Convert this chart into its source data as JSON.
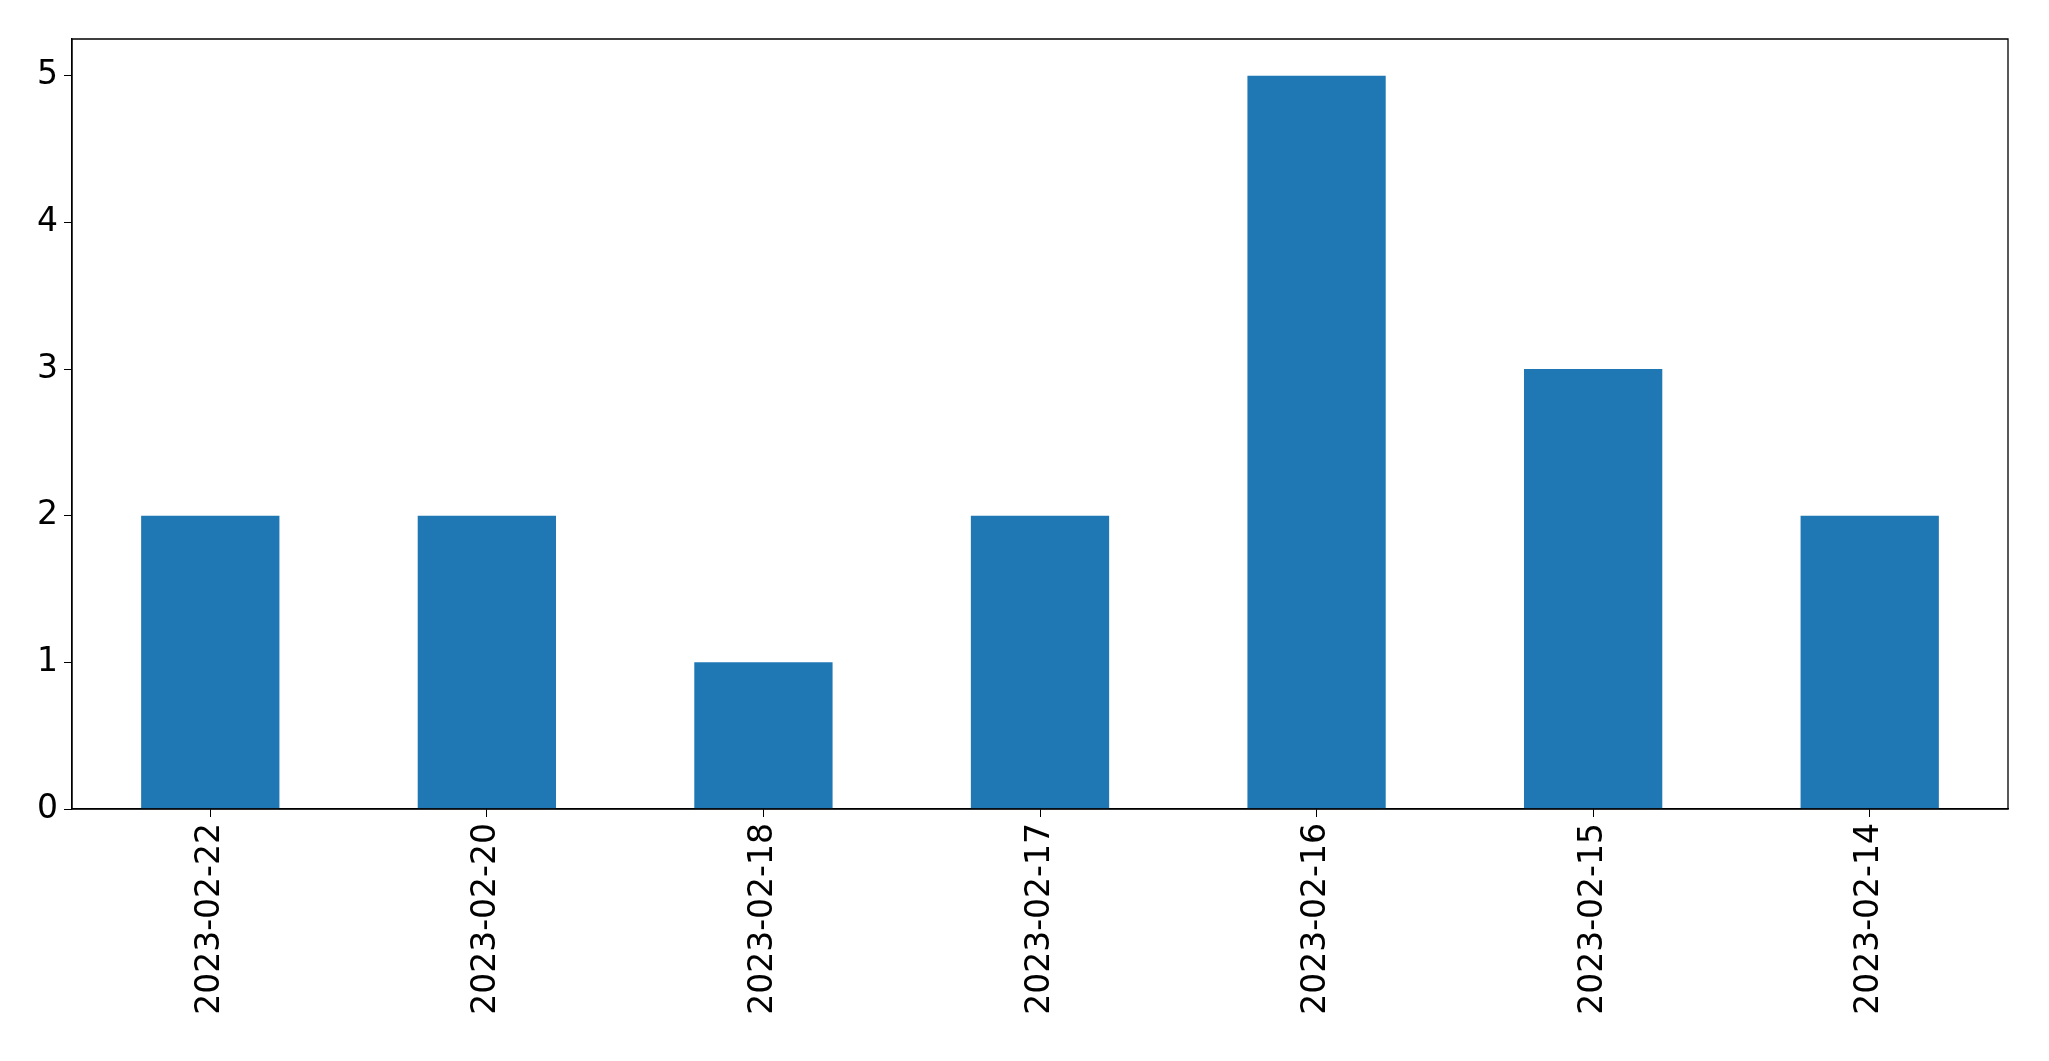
{
  "chart_data": {
    "type": "bar",
    "categories": [
      "2023-02-22",
      "2023-02-20",
      "2023-02-18",
      "2023-02-17",
      "2023-02-16",
      "2023-02-15",
      "2023-02-14"
    ],
    "values": [
      2,
      2,
      1,
      2,
      5,
      3,
      2
    ],
    "color": "#1f77b4",
    "ylim": [
      0,
      5.25
    ],
    "yticks": [
      0,
      1,
      2,
      3,
      4,
      5
    ]
  }
}
